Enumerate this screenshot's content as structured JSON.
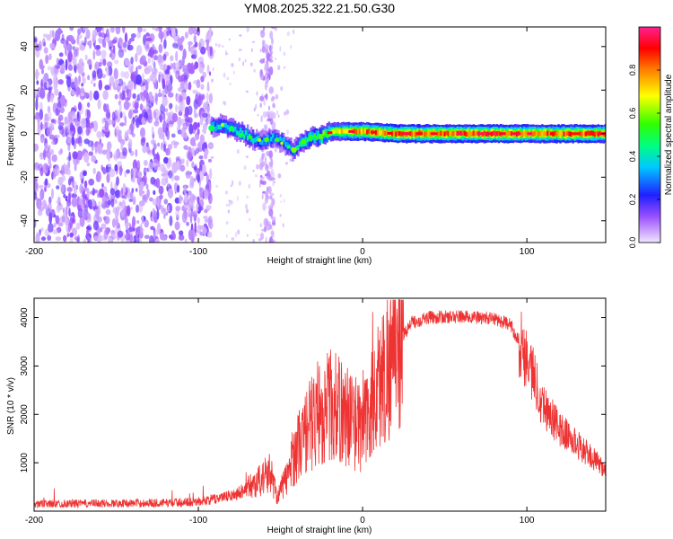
{
  "title": "YM08.2025.322.21.50.G30",
  "chart_data": [
    {
      "type": "heatmap",
      "name": "spectrogram",
      "xlabel": "Height of straight line (km)",
      "ylabel": "Frequency (Hz)",
      "xlim": [
        -200,
        148
      ],
      "ylim": [
        -50,
        49
      ],
      "xticks": [
        -200,
        -100,
        0,
        100
      ],
      "yticks": [
        -40,
        -20,
        0,
        20,
        40
      ],
      "colorbar": {
        "label": "Normalized spectral amplitude",
        "range": [
          0.0,
          1.0
        ],
        "ticks": [
          0.0,
          0.2,
          0.4,
          0.6,
          0.8
        ]
      },
      "noise_region_km": [
        -200,
        -92
      ],
      "noise_stripe_km": [
        -62,
        -54
      ],
      "signal_track": [
        {
          "x": -92,
          "f": 3,
          "amp": 0.35
        },
        {
          "x": -85,
          "f": 4,
          "amp": 0.4
        },
        {
          "x": -78,
          "f": 2,
          "amp": 0.4
        },
        {
          "x": -70,
          "f": -1,
          "amp": 0.4
        },
        {
          "x": -62,
          "f": -4,
          "amp": 0.35
        },
        {
          "x": -55,
          "f": -2,
          "amp": 0.35
        },
        {
          "x": -48,
          "f": -4,
          "amp": 0.35
        },
        {
          "x": -42,
          "f": -8,
          "amp": 0.35
        },
        {
          "x": -38,
          "f": -5,
          "amp": 0.45
        },
        {
          "x": -32,
          "f": -2,
          "amp": 0.5
        },
        {
          "x": -25,
          "f": -1,
          "amp": 0.55
        },
        {
          "x": -18,
          "f": 1,
          "amp": 0.65
        },
        {
          "x": -10,
          "f": 1,
          "amp": 0.75
        },
        {
          "x": 0,
          "f": 1,
          "amp": 0.8
        },
        {
          "x": 20,
          "f": 0,
          "amp": 0.85
        },
        {
          "x": 40,
          "f": 0,
          "amp": 0.85
        },
        {
          "x": 60,
          "f": 0,
          "amp": 0.85
        },
        {
          "x": 80,
          "f": 0,
          "amp": 0.9
        },
        {
          "x": 100,
          "f": 0,
          "amp": 0.85
        },
        {
          "x": 120,
          "f": 0,
          "amp": 0.85
        },
        {
          "x": 148,
          "f": 0,
          "amp": 0.85
        }
      ]
    },
    {
      "type": "line",
      "name": "snr",
      "xlabel": "Height of straight line (km)",
      "ylabel": "SNR (10 * v/v)",
      "xlim": [
        -200,
        148
      ],
      "ylim": [
        0,
        4400
      ],
      "xticks": [
        -200,
        -100,
        0,
        100
      ],
      "yticks": [
        1000,
        2000,
        3000,
        4000
      ],
      "color": "#ee3333",
      "envelope": [
        {
          "x": -200,
          "y": 150
        },
        {
          "x": -160,
          "y": 160
        },
        {
          "x": -120,
          "y": 170
        },
        {
          "x": -100,
          "y": 200
        },
        {
          "x": -90,
          "y": 250
        },
        {
          "x": -80,
          "y": 320
        },
        {
          "x": -70,
          "y": 480
        },
        {
          "x": -62,
          "y": 650
        },
        {
          "x": -56,
          "y": 800
        },
        {
          "x": -52,
          "y": 300
        },
        {
          "x": -46,
          "y": 700
        },
        {
          "x": -40,
          "y": 1300
        },
        {
          "x": -30,
          "y": 1900
        },
        {
          "x": -20,
          "y": 2200
        },
        {
          "x": -10,
          "y": 2000
        },
        {
          "x": 0,
          "y": 1700
        },
        {
          "x": 10,
          "y": 2600
        },
        {
          "x": 20,
          "y": 3400
        },
        {
          "x": 30,
          "y": 3900
        },
        {
          "x": 40,
          "y": 4000
        },
        {
          "x": 60,
          "y": 4020
        },
        {
          "x": 80,
          "y": 3980
        },
        {
          "x": 90,
          "y": 3850
        },
        {
          "x": 100,
          "y": 3200
        },
        {
          "x": 110,
          "y": 2200
        },
        {
          "x": 120,
          "y": 1700
        },
        {
          "x": 130,
          "y": 1400
        },
        {
          "x": 140,
          "y": 1100
        },
        {
          "x": 148,
          "y": 850
        }
      ]
    }
  ]
}
